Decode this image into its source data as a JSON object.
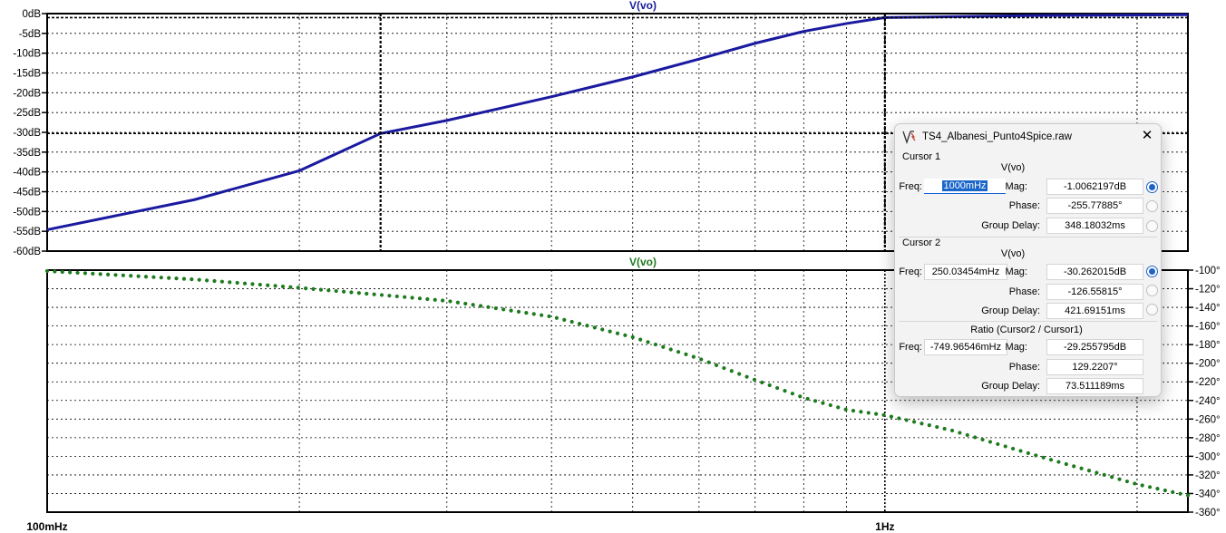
{
  "magnitude_pane": {
    "trace_label": "V(vo)",
    "trace_color": "#1a1aa0",
    "y_ticks": [
      "0dB",
      "-5dB",
      "-10dB",
      "-15dB",
      "-20dB",
      "-25dB",
      "-30dB",
      "-35dB",
      "-40dB",
      "-45dB",
      "-50dB",
      "-55dB",
      "-60dB"
    ]
  },
  "phase_pane": {
    "trace_label": "V(vo)",
    "trace_color": "#1e7a1e",
    "y_ticks": [
      "-100°",
      "-120°",
      "-140°",
      "-160°",
      "-180°",
      "-200°",
      "-220°",
      "-240°",
      "-260°",
      "-280°",
      "-300°",
      "-320°",
      "-340°",
      "-360°"
    ]
  },
  "x_axis": {
    "ticks": [
      "100mHz",
      "1Hz"
    ],
    "scale": "log"
  },
  "chart_data": [
    {
      "type": "line",
      "title": "V(vo)",
      "xlabel": "",
      "ylabel": "",
      "x_scale": "log",
      "xlim": [
        0.1,
        2.3
      ],
      "ylim": [
        -60,
        0
      ],
      "grid": true,
      "series": [
        {
          "name": "V(vo)",
          "x": [
            0.1,
            0.15,
            0.2,
            0.25,
            0.3,
            0.4,
            0.5,
            0.6,
            0.7,
            0.8,
            0.9,
            1.0,
            1.5,
            2.3
          ],
          "values": [
            -54.6,
            -47,
            -39.7,
            -30.3,
            -27,
            -21,
            -16,
            -11.5,
            -7.5,
            -4.5,
            -2.5,
            -1.0,
            -0.5,
            -0.3
          ]
        }
      ]
    },
    {
      "type": "line",
      "title": "V(vo)",
      "xlabel": "",
      "ylabel": "",
      "x_scale": "log",
      "xlim": [
        0.1,
        2.3
      ],
      "ylim": [
        -360,
        -100
      ],
      "grid": true,
      "series": [
        {
          "name": "V(vo)",
          "x": [
            0.1,
            0.15,
            0.2,
            0.25,
            0.3,
            0.4,
            0.5,
            0.6,
            0.7,
            0.8,
            0.9,
            1.0,
            1.2,
            1.5,
            2.0,
            2.3
          ],
          "values": [
            -101,
            -110,
            -119,
            -126.6,
            -133,
            -150,
            -172,
            -195,
            -218,
            -237,
            -250,
            -255.8,
            -272,
            -298,
            -330,
            -342
          ]
        }
      ]
    }
  ],
  "cursor_dialog": {
    "title": "TS4_Albanesi_Punto4Spice.raw",
    "cursor1": {
      "group_label": "Cursor 1",
      "trace": "V(vo)",
      "freq_label": "Freq:",
      "freq_value": "1000mHz",
      "mag_label": "Mag:",
      "mag_value": "-1.0062197dB",
      "phase_label": "Phase:",
      "phase_value": "-255.77885°",
      "gd_label": "Group Delay:",
      "gd_value": "348.18032ms"
    },
    "cursor2": {
      "group_label": "Cursor 2",
      "trace": "V(vo)",
      "freq_label": "Freq:",
      "freq_value": "250.03454mHz",
      "mag_label": "Mag:",
      "mag_value": "-30.262015dB",
      "phase_label": "Phase:",
      "phase_value": "-126.55815°",
      "gd_label": "Group Delay:",
      "gd_value": "421.69151ms"
    },
    "ratio": {
      "group_label": "Ratio (Cursor2 / Cursor1)",
      "freq_label": "Freq:",
      "freq_value": "-749.96546mHz",
      "mag_label": "Mag:",
      "mag_value": "-29.255795dB",
      "phase_label": "Phase:",
      "phase_value": "129.2207°",
      "gd_label": "Group Delay:",
      "gd_value": "73.511189ms"
    }
  }
}
